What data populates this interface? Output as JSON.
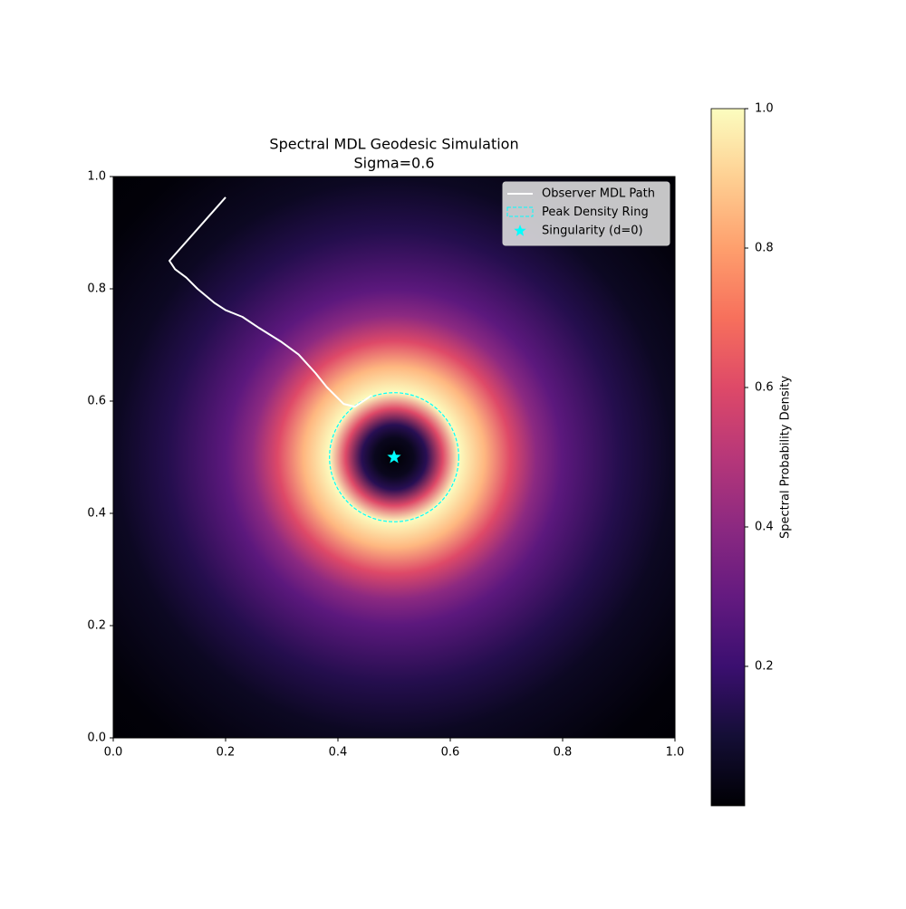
{
  "chart_data": {
    "type": "line",
    "title": "Spectral MDL Geodesic Simulation",
    "subtitle": "Sigma=0.6",
    "series": [
      {
        "name": "Observer MDL Path",
        "color": "#ffffff",
        "x": [
          0.2,
          0.1,
          0.11,
          0.13,
          0.15,
          0.18,
          0.2,
          0.23,
          0.26,
          0.3,
          0.33,
          0.36,
          0.38,
          0.41,
          0.43,
          0.46
        ],
        "values": [
          0.963,
          0.85,
          0.835,
          0.82,
          0.8,
          0.775,
          0.762,
          0.75,
          0.73,
          0.705,
          0.683,
          0.65,
          0.625,
          0.595,
          0.59,
          0.61
        ]
      }
    ],
    "ring": {
      "name": "Peak Density Ring",
      "color": "#00ffff",
      "center": [
        0.5,
        0.5
      ],
      "radius": 0.115
    },
    "marker": {
      "name": "Singularity (d=0)",
      "color": "#00ffff",
      "x": 0.5,
      "y": 0.5
    },
    "xlim": [
      0,
      1
    ],
    "ylim": [
      0,
      1
    ],
    "xticks": [
      {
        "value": 0,
        "label": "0.0"
      },
      0.2,
      0.4,
      0.6,
      0.8,
      {
        "value": 1,
        "label": "1.0"
      }
    ],
    "yticks": [
      {
        "value": 0,
        "label": "0.0"
      },
      0.2,
      0.4,
      0.6,
      0.8,
      {
        "value": 1,
        "label": "1.0"
      }
    ],
    "legend": "upper right",
    "colorbar": {
      "label": "Spectral Probability Density",
      "colormap": "magma",
      "clim": [
        0,
        1
      ],
      "ticks": [
        0.2,
        0.4,
        0.6,
        0.8,
        {
          "value": 1,
          "label": "1.0"
        }
      ]
    }
  }
}
